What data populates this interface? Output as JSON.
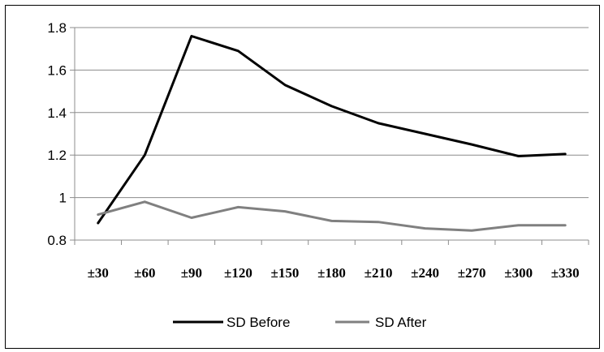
{
  "chart_data": {
    "type": "line",
    "title": "",
    "xlabel": "",
    "ylabel": "",
    "categories": [
      "±30",
      "±60",
      "±90",
      "±120",
      "±150",
      "±180",
      "±210",
      "±240",
      "±270",
      "±300",
      "±330"
    ],
    "ylim": [
      0.8,
      1.8
    ],
    "yticks": [
      "0.8",
      "1",
      "1.2",
      "1.4",
      "1.6",
      "1.8"
    ],
    "grid": "horizontal",
    "legend": "bottom",
    "series": [
      {
        "name": "SD Before",
        "color": "#000000",
        "values": [
          0.88,
          1.2,
          1.76,
          1.69,
          1.53,
          1.43,
          1.35,
          1.3,
          1.25,
          1.195,
          1.205
        ]
      },
      {
        "name": "SD After",
        "color": "#808080",
        "values": [
          0.92,
          0.98,
          0.905,
          0.955,
          0.935,
          0.89,
          0.885,
          0.855,
          0.845,
          0.87,
          0.87
        ]
      }
    ]
  }
}
